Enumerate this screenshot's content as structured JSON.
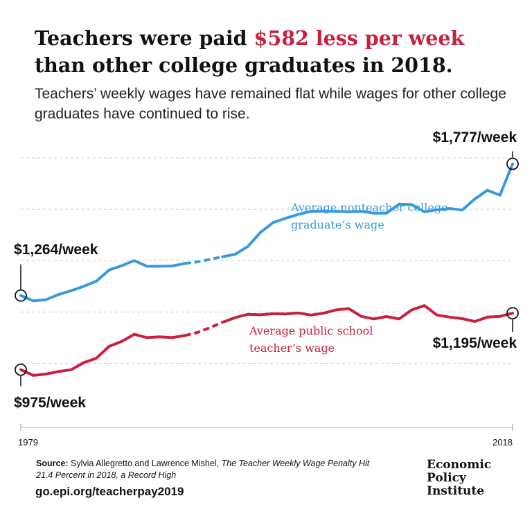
{
  "header": {
    "title_before": "Teachers were paid ",
    "title_highlight": "$582 less per week",
    "title_after": " than other college graduates in 2018.",
    "subtitle": "Teachers’ weekly wages have remained flat while wages for other college graduates have continued to rise."
  },
  "colors": {
    "nonteacher": "#3a9ad9",
    "teacher": "#c8203f",
    "highlight": "#c8203f",
    "grid": "#cccccc",
    "text": "#111111"
  },
  "chart_data": {
    "type": "line",
    "x_start_label": "1979",
    "x_end_label": "2018",
    "ylim": [
      800,
      1850
    ],
    "grid": true,
    "gridlines": [
      1000,
      1200,
      1400,
      1600,
      1800
    ],
    "x": [
      1979,
      1980,
      1981,
      1982,
      1983,
      1984,
      1985,
      1986,
      1987,
      1988,
      1989,
      1990,
      1991,
      1992,
      1993,
      1994,
      1995,
      1996,
      1997,
      1998,
      1999,
      2000,
      2001,
      2002,
      2003,
      2004,
      2005,
      2006,
      2007,
      2008,
      2009,
      2010,
      2011,
      2012,
      2013,
      2014,
      2015,
      2016,
      2017,
      2018
    ],
    "series": [
      {
        "name": "Average nonteacher college graduate’s wage",
        "color": "#3a9ad9",
        "values": [
          1264,
          1243,
          1248,
          1268,
          1283,
          1300,
          1320,
          1363,
          1380,
          1400,
          1378,
          1378,
          1379,
          1389,
          1395,
          1405,
          1415,
          1425,
          1455,
          1510,
          1548,
          1565,
          1580,
          1592,
          1593,
          1592,
          1590,
          1592,
          1585,
          1585,
          1620,
          1618,
          1590,
          1598,
          1603,
          1597,
          1640,
          1674,
          1655,
          1777
        ],
        "segments": [
          [
            0,
            13
          ],
          [
            13,
            16
          ],
          [
            16,
            39
          ]
        ],
        "dashed_segment": 1,
        "start_label": "$1,264/week",
        "end_label": "$1,777/week",
        "line_label": [
          "Average nonteacher college",
          "graduate’s wage"
        ]
      },
      {
        "name": "Average public school teacher’s wage",
        "color": "#c8203f",
        "values": [
          975,
          953,
          958,
          968,
          975,
          1003,
          1020,
          1066,
          1085,
          1113,
          1100,
          1103,
          1100,
          1108,
          1120,
          1139,
          1160,
          1178,
          1191,
          1189,
          1193,
          1192,
          1196,
          1188,
          1195,
          1208,
          1213,
          1183,
          1173,
          1182,
          1173,
          1208,
          1225,
          1188,
          1180,
          1174,
          1163,
          1180,
          1183,
          1195
        ],
        "segments": [
          [
            0,
            13
          ],
          [
            13,
            16
          ],
          [
            16,
            39
          ]
        ],
        "dashed_segment": 1,
        "start_label": "$975/week",
        "end_label": "$1,195/week",
        "line_label": [
          "Average public school",
          "teacher’s wage"
        ]
      }
    ]
  },
  "footer": {
    "source_label": "Source:",
    "source_authors": " Sylvia Allegretto and Lawrence Mishel, ",
    "source_title": "The Teacher Weekly Wage Penalty Hit 21.4 Percent in 2018, a Record High",
    "url": "go.epi.org/teacherpay2019",
    "logo_lines": [
      "Economic",
      "Policy",
      "Institute"
    ]
  }
}
